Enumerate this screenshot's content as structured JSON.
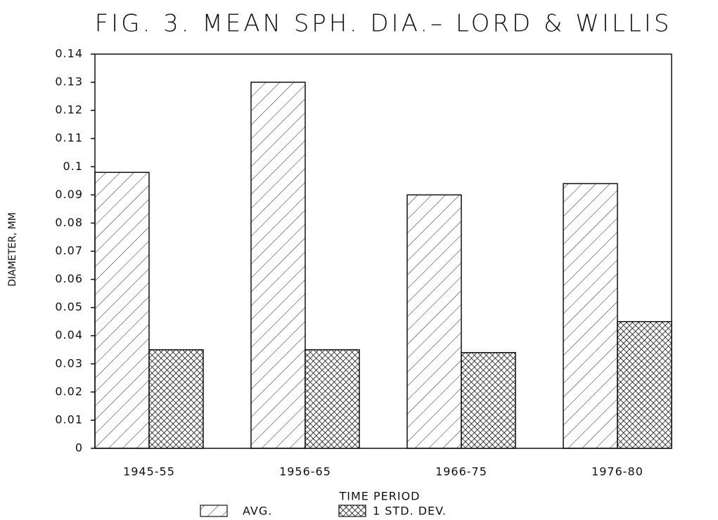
{
  "chart_data": {
    "type": "bar",
    "title": "FIG. 3. MEAN SPH. DIA.– LORD & WILLIS",
    "x_label": "TIME PERIOD",
    "y_label": "DIAMETER, MM",
    "categories": [
      "1945-55",
      "1956-65",
      "1966-75",
      "1976-80"
    ],
    "series": [
      {
        "name": "AVG.",
        "color": "#111111",
        "pattern": "hatch",
        "values": [
          0.098,
          0.13,
          0.09,
          0.094
        ]
      },
      {
        "name": "1 STD. DEV.",
        "color": "#111111",
        "pattern": "crosshatch",
        "values": [
          0.035,
          0.035,
          0.034,
          0.045
        ]
      }
    ],
    "ylim": [
      0,
      0.14
    ],
    "yticks": [
      0,
      0.01,
      0.02,
      0.03,
      0.04,
      0.05,
      0.06,
      0.07,
      0.08,
      0.09,
      0.1,
      0.11,
      0.12,
      0.13,
      0.14
    ]
  }
}
